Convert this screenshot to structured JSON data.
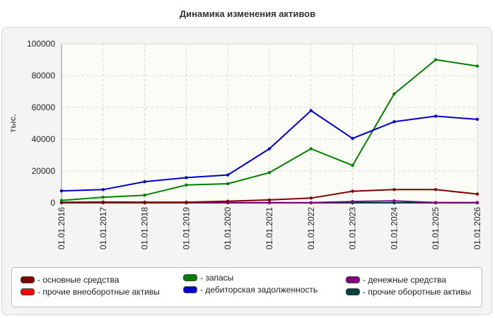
{
  "chart_data": {
    "type": "line",
    "title": "Динамика изменения активов",
    "ylabel": "тыс.",
    "xlabel": "",
    "categories": [
      "01.01.2016",
      "01.01.2017",
      "01.01.2018",
      "01.01.2019",
      "01.01.2020",
      "01.01.2021",
      "01.01.2022",
      "01.01.2023",
      "01.01.2024",
      "01.01.2025",
      "01.01.2026"
    ],
    "ylim": [
      0,
      100000
    ],
    "yticks": [
      "0",
      "20000",
      "40000",
      "60000",
      "80000",
      "100000"
    ],
    "grid": true,
    "legend_position": "bottom",
    "series": [
      {
        "name": "- основные средства",
        "color": "#800000",
        "values": [
          300,
          500,
          400,
          400,
          1000,
          1800,
          3000,
          7300,
          8300,
          8300,
          5500
        ]
      },
      {
        "name": "- запасы",
        "color": "#008000",
        "values": [
          1500,
          3500,
          4800,
          11200,
          12000,
          19000,
          34000,
          23500,
          68500,
          90000,
          86000
        ]
      },
      {
        "name": "- денежные средства",
        "color": "#800080",
        "values": [
          100,
          100,
          100,
          100,
          100,
          100,
          100,
          800,
          1200,
          200,
          200
        ]
      },
      {
        "name": "- прочие внеоборотные активы",
        "color": "#ff0000",
        "values": [
          0,
          0,
          0,
          0,
          0,
          0,
          0,
          0,
          0,
          0,
          0
        ]
      },
      {
        "name": "- дебиторская задолженность",
        "color": "#0000cc",
        "values": [
          7500,
          8300,
          13300,
          15800,
          17500,
          34000,
          58000,
          40500,
          51000,
          54500,
          52500
        ]
      },
      {
        "name": "- прочие оборотные активы",
        "color": "#004040",
        "values": [
          0,
          0,
          0,
          0,
          0,
          0,
          0,
          0,
          0,
          0,
          0
        ]
      }
    ]
  }
}
